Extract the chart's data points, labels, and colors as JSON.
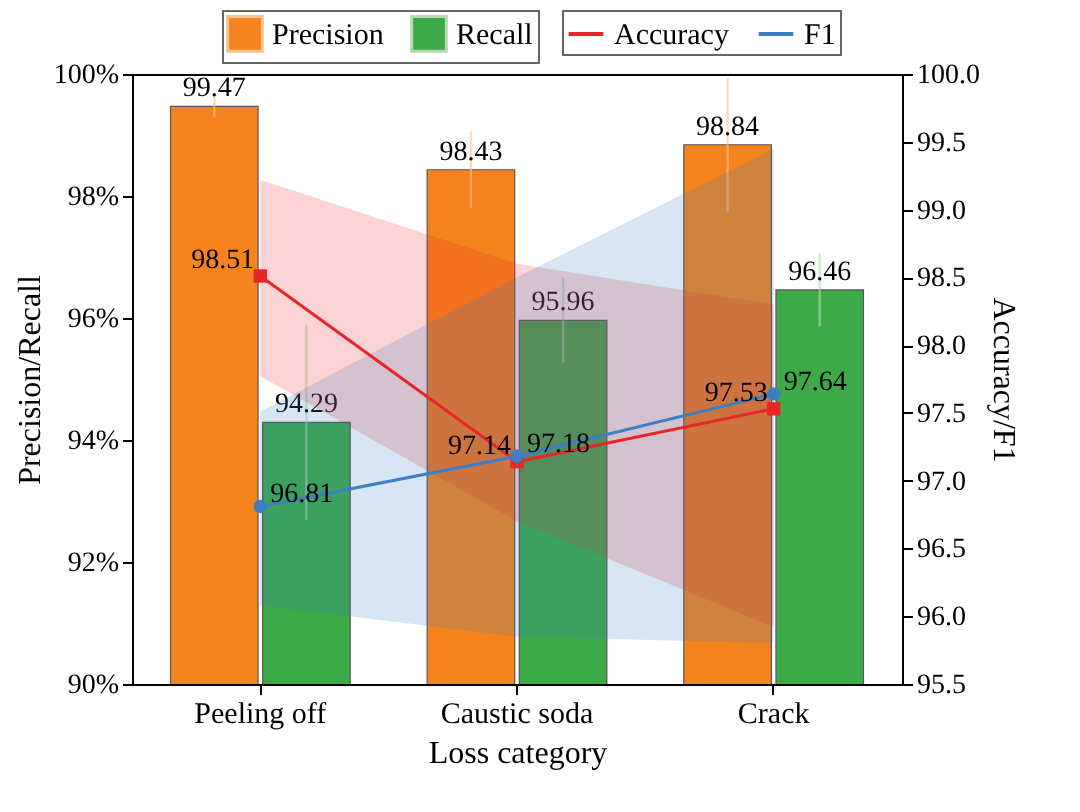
{
  "chart_data": {
    "type": "bar",
    "xlabel": "Loss category",
    "ylabel": "Precision/Recall",
    "y2label": "Accuracy/F1",
    "categories": [
      "Peeling off",
      "Caustic soda",
      "Crack"
    ],
    "series": [
      {
        "name": "Precision",
        "type": "bar",
        "color": "#f5841f",
        "values": [
          99.47,
          98.43,
          98.84
        ],
        "errors": [
          0.18,
          0.63,
          1.1
        ]
      },
      {
        "name": "Recall",
        "type": "bar",
        "color": "#3daa48",
        "values": [
          94.29,
          95.96,
          96.46
        ],
        "errors": [
          1.6,
          0.7,
          0.6
        ]
      },
      {
        "name": "Accuracy",
        "type": "line",
        "axis": "y2",
        "marker": "square",
        "color": "#e8262a",
        "values": [
          98.51,
          97.14,
          97.53
        ],
        "lower": [
          97.77,
          96.7,
          95.92
        ],
        "upper": [
          99.22,
          98.6,
          98.3
        ]
      },
      {
        "name": "F1",
        "type": "line",
        "axis": "y2",
        "marker": "circle",
        "color": "#3b7fc4",
        "values": [
          96.81,
          97.18,
          97.64
        ],
        "lower": [
          96.08,
          95.85,
          95.8
        ],
        "upper": [
          97.51,
          98.5,
          99.45
        ]
      }
    ],
    "ylim": [
      90,
      100
    ],
    "yticks": [
      {
        "value": 90,
        "label": "90%"
      },
      {
        "value": 92,
        "label": "92%"
      },
      {
        "value": 94,
        "label": "94%"
      },
      {
        "value": 96,
        "label": "96%"
      },
      {
        "value": 98,
        "label": "98%"
      },
      {
        "value": 100,
        "label": "100%"
      }
    ],
    "y2lim": [
      95.5,
      100
    ],
    "y2ticks": [
      {
        "value": 95.5,
        "label": "95.5"
      },
      {
        "value": 96,
        "label": "96.0"
      },
      {
        "value": 96.5,
        "label": "96.5"
      },
      {
        "value": 97,
        "label": "97.0"
      },
      {
        "value": 97.5,
        "label": "97.5"
      },
      {
        "value": 98,
        "label": "98.0"
      },
      {
        "value": 98.5,
        "label": "98.5"
      },
      {
        "value": 99,
        "label": "99.0"
      },
      {
        "value": 99.5,
        "label": "99.5"
      },
      {
        "value": 100,
        "label": "100.0"
      }
    ],
    "data_labels": true,
    "legend": "top",
    "grid": false,
    "line_style": "solid"
  }
}
